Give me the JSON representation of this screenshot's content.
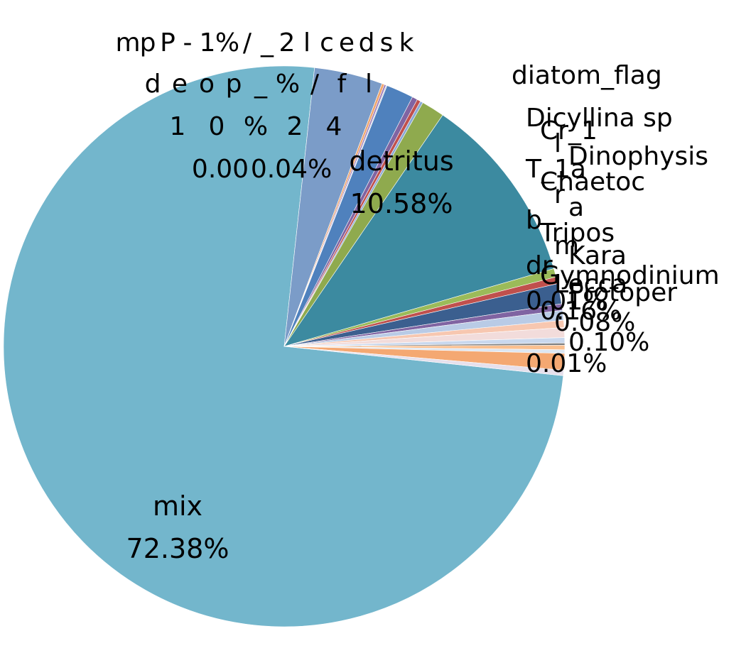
{
  "chart_data": {
    "type": "pie",
    "title": "",
    "legend": "none",
    "slices": [
      {
        "name": "mix",
        "value": 72.38,
        "pct": "72.38%",
        "color": "#73B6CC"
      },
      {
        "name": "",
        "value": 3.8,
        "pct": "",
        "color": "#7B9CC8"
      },
      {
        "name": "",
        "value": 0.14,
        "pct": "",
        "color": "#F0A66E"
      },
      {
        "name": "",
        "value": 0.1,
        "pct": "0.10%",
        "color": "#9C7BB8"
      },
      {
        "name": "",
        "value": 0.06,
        "pct": "",
        "color": "#C6CFE0"
      },
      {
        "name": "",
        "value": 1.52,
        "pct": "",
        "color": "#4F81BD"
      },
      {
        "name": "",
        "value": 0.3,
        "pct": "",
        "color": "#8064A2"
      },
      {
        "name": "",
        "value": 0.2,
        "pct": "",
        "color": "#C0504D"
      },
      {
        "name": "",
        "value": 0.15,
        "pct": "",
        "color": "#8AA9D6"
      },
      {
        "name": "",
        "value": 1.28,
        "pct": "",
        "color": "#8FAA4E"
      },
      {
        "name": "detritus",
        "value": 10.58,
        "pct": "10.58%",
        "color": "#3C8AA0"
      },
      {
        "name": "",
        "value": 0.47,
        "pct": "",
        "color": "#9BBB59"
      },
      {
        "name": "",
        "value": 0.38,
        "pct": "",
        "color": "#C0504D"
      },
      {
        "name": "",
        "value": 1.12,
        "pct": "",
        "color": "#3B5F8F"
      },
      {
        "name": "",
        "value": 0.36,
        "pct": "",
        "color": "#8064A2"
      },
      {
        "name": "",
        "value": 0.55,
        "pct": "",
        "color": "#B9CBE6"
      },
      {
        "name": "",
        "value": 0.4,
        "pct": "",
        "color": "#F7C7B0"
      },
      {
        "name": "",
        "value": 0.55,
        "pct": "",
        "color": "#F2DCDB"
      },
      {
        "name": "",
        "value": 0.3,
        "pct": "",
        "color": "#C9D8EE"
      },
      {
        "name": "",
        "value": 0.12,
        "pct": "",
        "color": "#7F7F7F"
      },
      {
        "name": "",
        "value": 0.25,
        "pct": "",
        "color": "#FAC090"
      },
      {
        "name": "",
        "value": 0.2,
        "pct": "",
        "color": "#DCE6F2"
      },
      {
        "name": "",
        "value": 0.92,
        "pct": "",
        "color": "#F4A872"
      },
      {
        "name": "",
        "value": 0.3,
        "pct": "",
        "color": "#E6E0EC"
      }
    ],
    "extra_labels": {
      "top_left": [
        "m",
        "p",
        "P",
        "-",
        "1",
        "%",
        "/",
        "_",
        "2",
        "l",
        "c",
        "e",
        "d",
        "s",
        "k"
      ],
      "top_left_row2": [
        "d",
        "e",
        "o",
        "p",
        "_",
        "%",
        "/",
        "f",
        "l"
      ],
      "top_left_row3": [
        "1",
        "0",
        "%",
        "2",
        "4"
      ],
      "top_left_row4": [
        "0.00",
        "0.04%"
      ],
      "right_top": "diatom_flag",
      "right_stack": [
        "Dicyllina sp",
        "Cr_1",
        "l",
        "Dinophysis",
        "T_1a",
        "Chaetoc",
        "r",
        "a",
        "b",
        "Tripos",
        "m",
        "Kara",
        "dr",
        "Gymnodinium",
        "Lecca",
        "Protoper",
        "0.01%",
        "0.16%",
        "0.08%",
        "0.10%",
        "0.01%"
      ]
    }
  }
}
